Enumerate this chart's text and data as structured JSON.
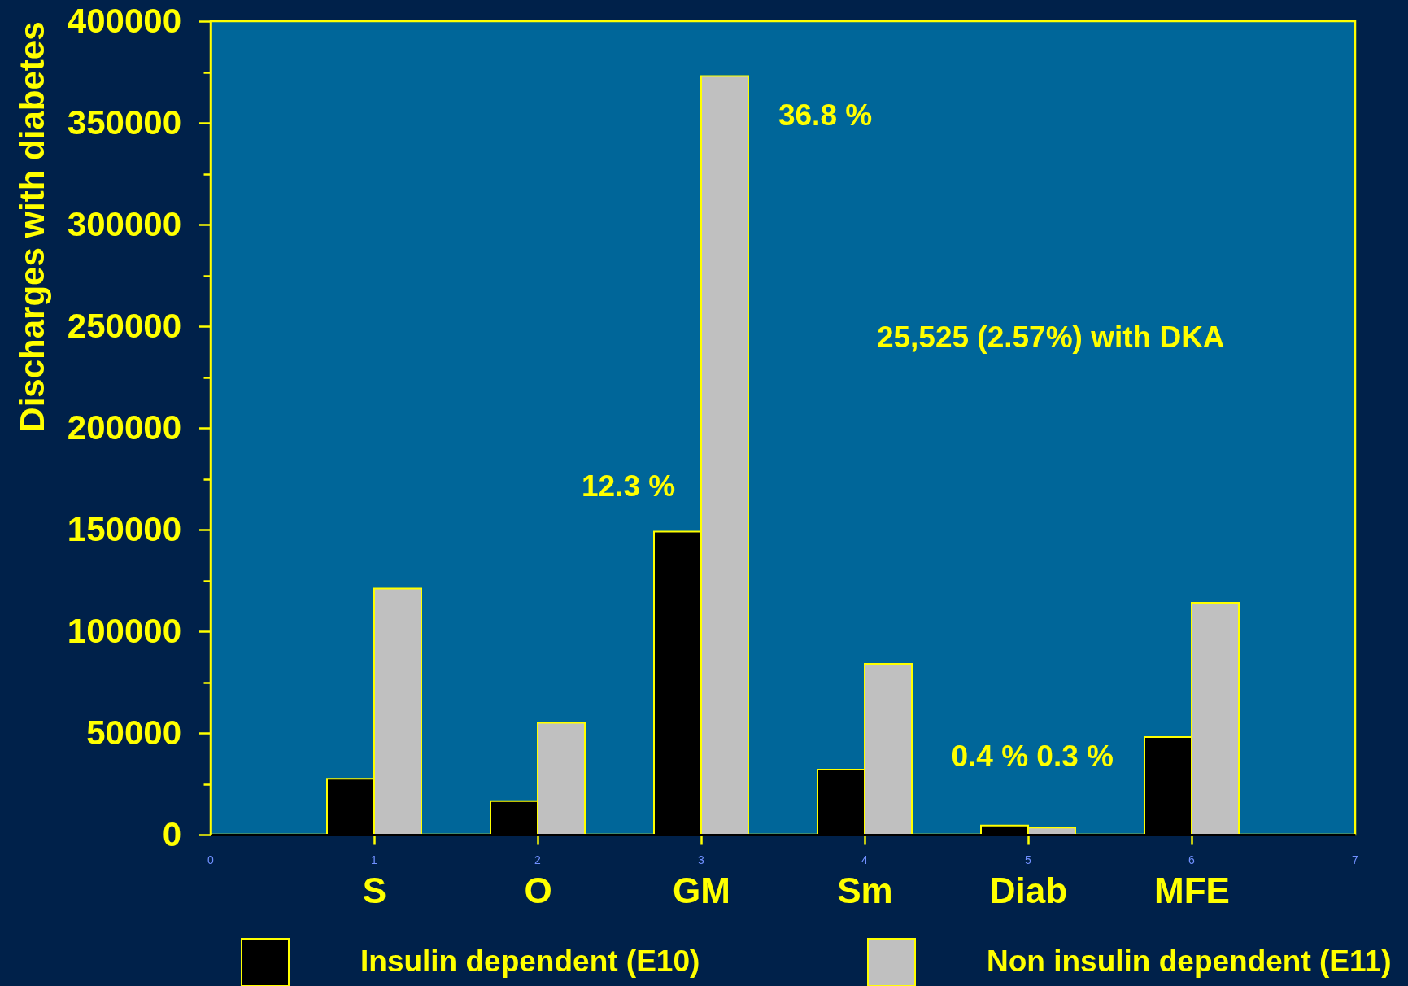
{
  "chart_data": {
    "type": "bar",
    "ylabel": "Discharges with diabetes",
    "categories": [
      "S",
      "O",
      "GM",
      "Sm",
      "Diab",
      "MFE"
    ],
    "ylim": [
      0,
      400000
    ],
    "yticks": [
      0,
      {
        "value": 25000,
        "label": null
      },
      50000,
      {
        "value": 75000,
        "label": null
      },
      100000,
      {
        "value": 125000,
        "label": null
      },
      150000,
      {
        "value": 175000,
        "label": null
      },
      200000,
      {
        "value": 225000,
        "label": null
      },
      250000,
      {
        "value": 275000,
        "label": null
      },
      300000,
      {
        "value": 325000,
        "label": null
      },
      350000,
      {
        "value": 375000,
        "label": null
      },
      400000
    ],
    "series": [
      {
        "name": "Insulin dependent (E10)",
        "color": "#000000",
        "values": [
          27500,
          16500,
          149000,
          32000,
          4500,
          48000
        ]
      },
      {
        "name": "Non insulin dependent (E11)",
        "color": "#c0c0c0",
        "values": [
          121000,
          55000,
          373000,
          84000,
          3500,
          114000
        ]
      }
    ],
    "annotations": [
      "36.8 %",
      "12.3 %",
      "25,525 (2.57%) with DKA",
      "0.4 % 0.3 %",
      "0",
      "1",
      "2",
      "3",
      "4",
      "5",
      "6",
      "7"
    ],
    "legend": "bottom"
  }
}
